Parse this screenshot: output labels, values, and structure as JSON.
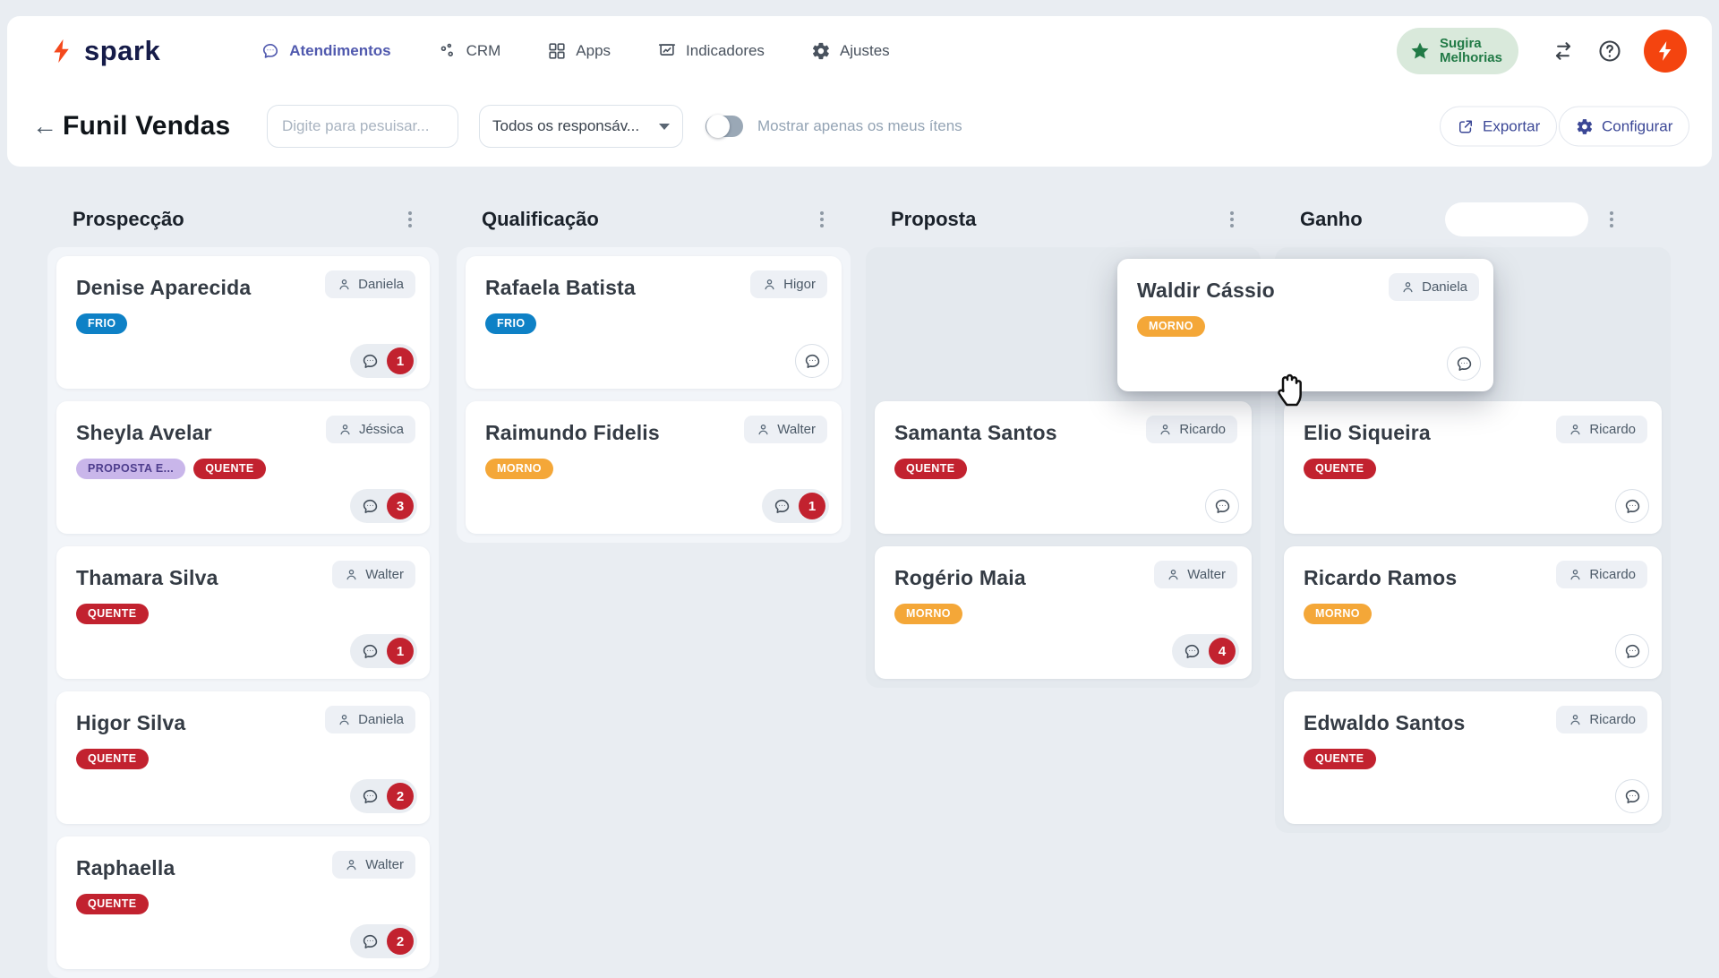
{
  "nav": {
    "brand": "spark",
    "items": [
      {
        "label": "Atendimentos",
        "icon": "chat",
        "active": true
      },
      {
        "label": "CRM",
        "icon": "scatter",
        "active": false
      },
      {
        "label": "Apps",
        "icon": "grid",
        "active": false
      },
      {
        "label": "Indicadores",
        "icon": "board",
        "active": false
      },
      {
        "label": "Ajustes",
        "icon": "gear",
        "active": false
      }
    ],
    "suggest": {
      "line1": "Sugira",
      "line2": "Melhorias"
    }
  },
  "toolbar": {
    "title": "Funil Vendas",
    "search_placeholder": "Digite para pesuisar...",
    "filter_value": "Todos os responsáv...",
    "toggle_label": "Mostrar apenas os meus ítens",
    "export_label": "Exportar",
    "configure_label": "Configurar"
  },
  "board": {
    "columns": [
      {
        "title": "Prospecção",
        "variant": "light",
        "lead_space": false,
        "header_pill": false,
        "cards": [
          {
            "name": "Denise Aparecida",
            "assignee": "Daniela",
            "badges": [
              {
                "label": "FRIO",
                "type": "frio"
              }
            ],
            "chat_count": "1"
          },
          {
            "name": "Sheyla Avelar",
            "assignee": "Jéssica",
            "badges": [
              {
                "label": "PROPOSTA E...",
                "type": "proposta"
              },
              {
                "label": "QUENTE",
                "type": "quente"
              }
            ],
            "chat_count": "3"
          },
          {
            "name": "Thamara Silva",
            "assignee": "Walter",
            "badges": [
              {
                "label": "QUENTE",
                "type": "quente"
              }
            ],
            "chat_count": "1"
          },
          {
            "name": "Higor Silva",
            "assignee": "Daniela",
            "badges": [
              {
                "label": "QUENTE",
                "type": "quente"
              }
            ],
            "chat_count": "2"
          },
          {
            "name": "Raphaella",
            "assignee": "Walter",
            "badges": [
              {
                "label": "QUENTE",
                "type": "quente"
              }
            ],
            "chat_count": "2"
          }
        ]
      },
      {
        "title": "Qualificação",
        "variant": "light",
        "lead_space": false,
        "header_pill": false,
        "cards": [
          {
            "name": "Rafaela Batista",
            "assignee": "Higor",
            "badges": [
              {
                "label": "FRIO",
                "type": "frio"
              }
            ],
            "chat_count": null
          },
          {
            "name": "Raimundo Fidelis",
            "assignee": "Walter",
            "badges": [
              {
                "label": "MORNO",
                "type": "morno"
              }
            ],
            "chat_count": "1"
          }
        ]
      },
      {
        "title": "Proposta",
        "variant": "drop",
        "lead_space": true,
        "header_pill": false,
        "cards": [
          {
            "name": "Samanta Santos",
            "assignee": "Ricardo",
            "badges": [
              {
                "label": "QUENTE",
                "type": "quente"
              }
            ],
            "chat_count": null
          },
          {
            "name": "Rogério Maia",
            "assignee": "Walter",
            "badges": [
              {
                "label": "MORNO",
                "type": "morno"
              }
            ],
            "chat_count": "4"
          }
        ]
      },
      {
        "title": "Ganho",
        "variant": "drop",
        "lead_space": true,
        "header_pill": true,
        "cards": [
          {
            "name": "Elio Siqueira",
            "assignee": "Ricardo",
            "badges": [
              {
                "label": "QUENTE",
                "type": "quente"
              }
            ],
            "chat_count": null
          },
          {
            "name": "Ricardo Ramos",
            "assignee": "Ricardo",
            "badges": [
              {
                "label": "MORNO",
                "type": "morno"
              }
            ],
            "chat_count": null
          },
          {
            "name": "Edwaldo Santos",
            "assignee": "Ricardo",
            "badges": [
              {
                "label": "QUENTE",
                "type": "quente"
              }
            ],
            "chat_count": null
          }
        ]
      }
    ],
    "drag_card": {
      "name": "Waldir Cássio",
      "assignee": "Daniela",
      "badges": [
        {
          "label": "MORNO",
          "type": "morno"
        }
      ],
      "chat_count": null
    }
  },
  "badge_colors": {
    "frio": {
      "bg": "#0e81c6",
      "fg": "#ffffff"
    },
    "quente": {
      "bg": "#c2222f",
      "fg": "#ffffff"
    },
    "morno": {
      "bg": "#f4a738",
      "fg": "#ffffff"
    },
    "proposta": {
      "bg": "#c9b6ea",
      "fg": "#4d3d8d"
    }
  },
  "colors": {
    "accent_indigo": "#3b4796",
    "brand_orange": "#f4491d",
    "brand_navy": "#161c49",
    "suggest_green": "#217a46",
    "page_bg": "#e9edf2"
  }
}
